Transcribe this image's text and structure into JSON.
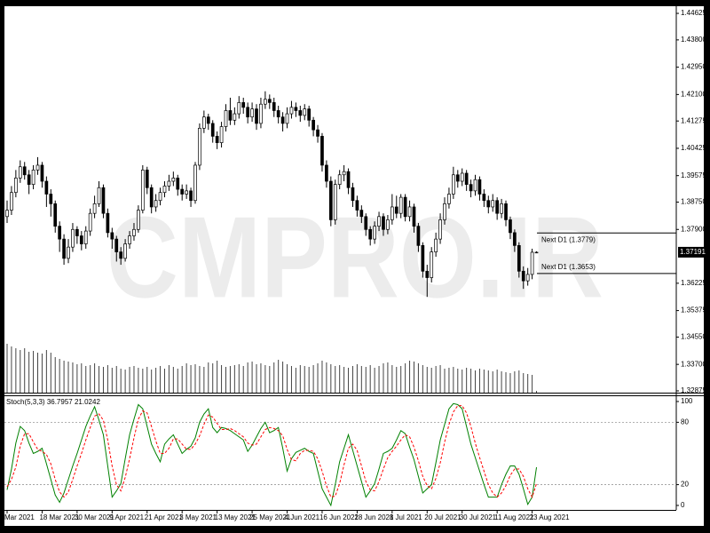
{
  "chart_data": [
    {
      "type": "candlestick",
      "watermark": "CMPRO.IR",
      "ylim": [
        1.3282,
        1.4482
      ],
      "yticks": [
        1.44625,
        {
          "value": 1.438,
          "label": "1.43800"
        },
        {
          "value": 1.4295,
          "label": "1.42950"
        },
        {
          "value": 1.421,
          "label": "1.42100"
        },
        1.41275,
        1.40425,
        1.39575,
        {
          "value": 1.3875,
          "label": "1.38750"
        },
        {
          "value": 1.379,
          "label": "1.37900"
        },
        1.36225,
        1.35375,
        {
          "value": 1.3455,
          "label": "1.34550"
        },
        {
          "value": 1.337,
          "label": "1.33700"
        },
        1.32875
      ],
      "up_color": "#ffffff",
      "down_color": "#000000",
      "line_color": "#000000",
      "volume_color": "#444444",
      "last_price": 1.37191,
      "annotations": [
        {
          "text": "Next D1 (1.3779)",
          "value": 1.3779
        },
        {
          "text": "Next D1 (1.3653)",
          "value": 1.3653
        }
      ],
      "categories": [
        "Mar 2021",
        null,
        null,
        null,
        null,
        null,
        null,
        null,
        "18 Mar 2021",
        null,
        null,
        null,
        null,
        null,
        null,
        null,
        "30 Mar 2021",
        null,
        null,
        null,
        null,
        null,
        null,
        null,
        "9 Apr 2021",
        null,
        null,
        null,
        null,
        null,
        null,
        null,
        "21 Apr 2021",
        null,
        null,
        null,
        null,
        null,
        null,
        null,
        "3 May 2021",
        null,
        null,
        null,
        null,
        null,
        null,
        null,
        "13 May 2021",
        null,
        null,
        null,
        null,
        null,
        null,
        null,
        "25 May 2021",
        null,
        null,
        null,
        null,
        null,
        null,
        null,
        "4 Jun 2021",
        null,
        null,
        null,
        null,
        null,
        null,
        null,
        "16 Jun 2021",
        null,
        null,
        null,
        null,
        null,
        null,
        null,
        "28 Jun 2021",
        null,
        null,
        null,
        null,
        null,
        null,
        null,
        "8 Jul 2021",
        null,
        null,
        null,
        null,
        null,
        null,
        null,
        "20 Jul 2021",
        null,
        null,
        null,
        null,
        null,
        null,
        null,
        "30 Jul 2021",
        null,
        null,
        null,
        null,
        null,
        null,
        null,
        "11 Aug 2021",
        null,
        null,
        null,
        null,
        null,
        null,
        null,
        "23 Aug 2021",
        null
      ],
      "ohlc": [
        [
          1.383,
          1.388,
          1.381,
          1.385
        ],
        [
          1.385,
          1.3925,
          1.3835,
          1.3905
        ],
        [
          1.3905,
          1.3975,
          1.389,
          1.395
        ],
        [
          1.395,
          1.4005,
          1.3935,
          1.3985
        ],
        [
          1.3985,
          1.4,
          1.3945,
          1.396
        ],
        [
          1.396,
          1.3975,
          1.39,
          1.393
        ],
        [
          1.393,
          1.399,
          1.3915,
          1.3975
        ],
        [
          1.3975,
          1.4015,
          1.396,
          1.399
        ],
        [
          1.399,
          1.4,
          1.392,
          1.394
        ],
        [
          1.394,
          1.3955,
          1.386,
          1.39
        ],
        [
          1.39,
          1.3915,
          1.383,
          1.387
        ],
        [
          1.387,
          1.388,
          1.378,
          1.38
        ],
        [
          1.38,
          1.3815,
          1.372,
          1.376
        ],
        [
          1.376,
          1.3775,
          1.368,
          1.37
        ],
        [
          1.37,
          1.376,
          1.3685,
          1.3735
        ],
        [
          1.3735,
          1.381,
          1.372,
          1.379
        ],
        [
          1.379,
          1.38,
          1.3745,
          1.377
        ],
        [
          1.377,
          1.3785,
          1.3725,
          1.3745
        ],
        [
          1.3745,
          1.38,
          1.373,
          1.3785
        ],
        [
          1.3785,
          1.3855,
          1.377,
          1.384
        ],
        [
          1.384,
          1.3895,
          1.3825,
          1.387
        ],
        [
          1.387,
          1.394,
          1.386,
          1.392
        ],
        [
          1.392,
          1.393,
          1.3825,
          1.384
        ],
        [
          1.384,
          1.3855,
          1.3765,
          1.378
        ],
        [
          1.378,
          1.3795,
          1.373,
          1.376
        ],
        [
          1.376,
          1.377,
          1.369,
          1.372
        ],
        [
          1.372,
          1.3735,
          1.368,
          1.37
        ],
        [
          1.37,
          1.376,
          1.369,
          1.3745
        ],
        [
          1.3745,
          1.3785,
          1.373,
          1.377
        ],
        [
          1.377,
          1.381,
          1.3755,
          1.379
        ],
        [
          1.379,
          1.3865,
          1.378,
          1.385
        ],
        [
          1.385,
          1.399,
          1.384,
          1.3975
        ],
        [
          1.3975,
          1.3985,
          1.39,
          1.392
        ],
        [
          1.392,
          1.393,
          1.384,
          1.386
        ],
        [
          1.386,
          1.39,
          1.3845,
          1.388
        ],
        [
          1.388,
          1.392,
          1.3865,
          1.3905
        ],
        [
          1.3905,
          1.394,
          1.389,
          1.3925
        ],
        [
          1.3925,
          1.396,
          1.391,
          1.394
        ],
        [
          1.394,
          1.397,
          1.3925,
          1.395
        ],
        [
          1.395,
          1.396,
          1.3895,
          1.3915
        ],
        [
          1.3915,
          1.393,
          1.388,
          1.39
        ],
        [
          1.39,
          1.393,
          1.3885,
          1.391
        ],
        [
          1.391,
          1.392,
          1.386,
          1.388
        ],
        [
          1.388,
          1.4,
          1.387,
          1.399
        ],
        [
          1.399,
          1.412,
          1.3975,
          1.4105
        ],
        [
          1.4105,
          1.416,
          1.409,
          1.414
        ],
        [
          1.414,
          1.415,
          1.41,
          1.412
        ],
        [
          1.412,
          1.413,
          1.406,
          1.408
        ],
        [
          1.408,
          1.4095,
          1.404,
          1.406
        ],
        [
          1.406,
          1.4125,
          1.4045,
          1.411
        ],
        [
          1.411,
          1.418,
          1.4095,
          1.416
        ],
        [
          1.416,
          1.42,
          1.4115,
          1.413
        ],
        [
          1.413,
          1.417,
          1.4115,
          1.415
        ],
        [
          1.415,
          1.4205,
          1.4135,
          1.4185
        ],
        [
          1.4185,
          1.42,
          1.415,
          1.417
        ],
        [
          1.417,
          1.4185,
          1.412,
          1.414
        ],
        [
          1.414,
          1.4185,
          1.4125,
          1.4165
        ],
        [
          1.4165,
          1.418,
          1.41,
          1.412
        ],
        [
          1.412,
          1.42,
          1.4105,
          1.418
        ],
        [
          1.418,
          1.422,
          1.4165,
          1.4195
        ],
        [
          1.4195,
          1.421,
          1.4165,
          1.4185
        ],
        [
          1.4185,
          1.42,
          1.414,
          1.416
        ],
        [
          1.416,
          1.4175,
          1.412,
          1.414
        ],
        [
          1.414,
          1.4155,
          1.4095,
          1.412
        ],
        [
          1.412,
          1.417,
          1.4105,
          1.415
        ],
        [
          1.415,
          1.419,
          1.4135,
          1.417
        ],
        [
          1.417,
          1.4185,
          1.414,
          1.416
        ],
        [
          1.416,
          1.4175,
          1.4125,
          1.4145
        ],
        [
          1.4145,
          1.418,
          1.413,
          1.4165
        ],
        [
          1.4165,
          1.4175,
          1.411,
          1.413
        ],
        [
          1.413,
          1.414,
          1.408,
          1.41
        ],
        [
          1.41,
          1.4115,
          1.406,
          1.408
        ],
        [
          1.408,
          1.409,
          1.397,
          1.399
        ],
        [
          1.399,
          1.4005,
          1.392,
          1.394
        ],
        [
          1.394,
          1.3955,
          1.38,
          1.382
        ],
        [
          1.382,
          1.3945,
          1.3805,
          1.393
        ],
        [
          1.393,
          1.3975,
          1.3915,
          1.396
        ],
        [
          1.396,
          1.399,
          1.394,
          1.397
        ],
        [
          1.397,
          1.398,
          1.39,
          1.392
        ],
        [
          1.392,
          1.3935,
          1.386,
          1.388
        ],
        [
          1.388,
          1.3895,
          1.383,
          1.385
        ],
        [
          1.385,
          1.3865,
          1.381,
          1.383
        ],
        [
          1.383,
          1.384,
          1.377,
          1.379
        ],
        [
          1.379,
          1.38,
          1.374,
          1.376
        ],
        [
          1.376,
          1.3815,
          1.3745,
          1.38
        ],
        [
          1.38,
          1.3845,
          1.3785,
          1.383
        ],
        [
          1.383,
          1.384,
          1.377,
          1.379
        ],
        [
          1.379,
          1.3835,
          1.3775,
          1.382
        ],
        [
          1.382,
          1.39,
          1.3805,
          1.386
        ],
        [
          1.386,
          1.3895,
          1.3825,
          1.384
        ],
        [
          1.384,
          1.39,
          1.3825,
          1.389
        ],
        [
          1.389,
          1.39,
          1.3815,
          1.383
        ],
        [
          1.383,
          1.388,
          1.3815,
          1.386
        ],
        [
          1.386,
          1.387,
          1.378,
          1.38
        ],
        [
          1.38,
          1.381,
          1.372,
          1.374
        ],
        [
          1.374,
          1.375,
          1.364,
          1.366
        ],
        [
          1.366,
          1.368,
          1.358,
          1.364
        ],
        [
          1.364,
          1.3735,
          1.3625,
          1.372
        ],
        [
          1.372,
          1.378,
          1.3705,
          1.376
        ],
        [
          1.376,
          1.384,
          1.3745,
          1.382
        ],
        [
          1.382,
          1.389,
          1.3805,
          1.387
        ],
        [
          1.387,
          1.392,
          1.3855,
          1.39
        ],
        [
          1.39,
          1.3985,
          1.3885,
          1.396
        ],
        [
          1.396,
          1.3975,
          1.392,
          1.394
        ],
        [
          1.394,
          1.398,
          1.3925,
          1.3965
        ],
        [
          1.3965,
          1.3975,
          1.391,
          1.393
        ],
        [
          1.393,
          1.3945,
          1.389,
          1.391
        ],
        [
          1.391,
          1.396,
          1.3895,
          1.3945
        ],
        [
          1.3945,
          1.3955,
          1.388,
          1.39
        ],
        [
          1.39,
          1.3915,
          1.386,
          1.388
        ],
        [
          1.388,
          1.3895,
          1.384,
          1.386
        ],
        [
          1.386,
          1.39,
          1.3845,
          1.388
        ],
        [
          1.388,
          1.389,
          1.382,
          1.384
        ],
        [
          1.384,
          1.3885,
          1.3825,
          1.387
        ],
        [
          1.387,
          1.388,
          1.38,
          1.382
        ],
        [
          1.382,
          1.383,
          1.376,
          1.378
        ],
        [
          1.378,
          1.379,
          1.372,
          1.374
        ],
        [
          1.374,
          1.375,
          1.364,
          1.366
        ],
        [
          1.366,
          1.3675,
          1.3605,
          1.363
        ],
        [
          1.363,
          1.367,
          1.3615,
          1.365
        ],
        [
          1.365,
          1.373,
          1.3635,
          1.3719
        ],
        [
          1.3719,
          1.3722,
          1.3716,
          1.3719
        ]
      ],
      "volume": [
        55,
        52,
        50,
        48,
        50,
        46,
        47,
        45,
        44,
        48,
        45,
        40,
        38,
        36,
        35,
        34,
        32,
        33,
        30,
        31,
        33,
        30,
        29,
        31,
        28,
        30,
        27,
        26,
        29,
        30,
        28,
        27,
        29,
        26,
        28,
        30,
        27,
        31,
        29,
        27,
        30,
        33,
        31,
        32,
        30,
        29,
        34,
        33,
        36,
        31,
        29,
        30,
        31,
        32,
        30,
        34,
        35,
        32,
        33,
        31,
        30,
        34,
        37,
        35,
        32,
        30,
        28,
        31,
        30,
        29,
        31,
        33,
        36,
        34,
        32,
        30,
        31,
        29,
        28,
        30,
        32,
        30,
        29,
        31,
        28,
        30,
        33,
        34,
        31,
        29,
        30,
        33,
        36,
        35,
        33,
        31,
        29,
        28,
        30,
        31,
        27,
        28,
        29,
        27,
        26,
        28,
        27,
        25,
        27,
        26,
        25,
        24,
        26,
        24,
        23,
        22,
        24,
        25,
        22,
        21,
        20,
        2
      ]
    },
    {
      "type": "line",
      "title": "Stoch(5,3,3)",
      "ylim": [
        -4.3,
        105.1
      ],
      "yticks": [
        100,
        80,
        20,
        0
      ],
      "levels": [
        80,
        20
      ],
      "series": [
        {
          "color": "#008000",
          "dash": false,
          "values": [
            15,
            35,
            60,
            76,
            72,
            60,
            50,
            52,
            55,
            40,
            25,
            10,
            3,
            12,
            25,
            38,
            50,
            63,
            76,
            86,
            95,
            82,
            68,
            38,
            8,
            14,
            21,
            45,
            68,
            83,
            97,
            93,
            76,
            59,
            50,
            42,
            59,
            64,
            68,
            59,
            50,
            54,
            57,
            65,
            80,
            88,
            93,
            75,
            70,
            75,
            74,
            72,
            69,
            66,
            63,
            52,
            58,
            66,
            74,
            80,
            70,
            72,
            75,
            55,
            33,
            45,
            51,
            53,
            55,
            52,
            50,
            33,
            16,
            8,
            0,
            20,
            42,
            55,
            68,
            53,
            38,
            23,
            8,
            14,
            21,
            35,
            50,
            52,
            55,
            63,
            72,
            69,
            56,
            44,
            28,
            12,
            16,
            20,
            41,
            63,
            78,
            93,
            98,
            97,
            93,
            76,
            59,
            46,
            33,
            20,
            8,
            8,
            8,
            20,
            30,
            38,
            38,
            30,
            16,
            1,
            8,
            36.7957
          ]
        },
        {
          "color": "#ff0000",
          "dash": true,
          "values": [
            18,
            25,
            37,
            57,
            69,
            69,
            61,
            54,
            52,
            49,
            40,
            25,
            13,
            8,
            13,
            25,
            38,
            50,
            63,
            75,
            86,
            88,
            82,
            63,
            38,
            20,
            14,
            27,
            45,
            65,
            83,
            91,
            89,
            76,
            62,
            50,
            50,
            55,
            64,
            64,
            59,
            54,
            54,
            59,
            67,
            78,
            87,
            85,
            79,
            73,
            73,
            74,
            72,
            69,
            66,
            60,
            58,
            59,
            66,
            73,
            75,
            74,
            72,
            67,
            54,
            44,
            43,
            50,
            53,
            53,
            52,
            45,
            33,
            19,
            8,
            9,
            21,
            39,
            55,
            59,
            53,
            38,
            23,
            15,
            14,
            23,
            35,
            46,
            52,
            57,
            63,
            68,
            66,
            56,
            43,
            28,
            19,
            16,
            26,
            41,
            61,
            78,
            90,
            96,
            96,
            89,
            76,
            60,
            46,
            33,
            20,
            12,
            8,
            12,
            19,
            29,
            35,
            35,
            28,
            16,
            8,
            21.0242
          ]
        }
      ]
    }
  ]
}
